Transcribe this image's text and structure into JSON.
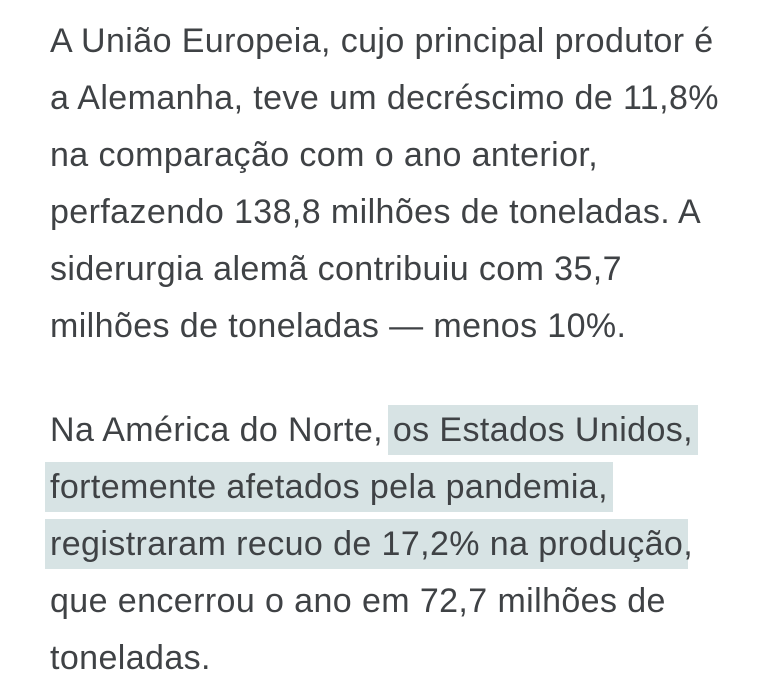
{
  "page": {
    "background": "#ffffff"
  },
  "colors": {
    "text": "#3f4245",
    "highlight": "#d7e3e4"
  },
  "article": {
    "highlighted_passage": "os Estados Unidos, fortemente afetados pela pandemia, registraram recuo de 17,2% na produção",
    "paragraphs": [
      {
        "name": "paragraph-uniao-europeia",
        "lines": [
          [
            {
              "text": "A União Europeia, cujo principal produtor é"
            }
          ],
          [
            {
              "text": "a Alemanha, teve um decréscimo de 11,8%"
            }
          ],
          [
            {
              "text": "na comparação com o ano anterior,"
            }
          ],
          [
            {
              "text": "perfazendo 138,8 milhões de toneladas. A"
            }
          ],
          [
            {
              "text": "siderurgia alemã contribuiu com 35,7"
            }
          ],
          [
            {
              "text": "milhões de toneladas — menos 10%."
            }
          ]
        ]
      },
      {
        "name": "paragraph-america-do-norte",
        "lines": [
          [
            {
              "text": "Na América do Norte, "
            },
            {
              "text": "os Estados Unidos,",
              "highlight": true
            }
          ],
          [
            {
              "text": "fortemente afetados pela pandemia,",
              "highlight": true
            }
          ],
          [
            {
              "text": "registraram recuo de 17,2% na produção",
              "highlight": true
            },
            {
              "text": ","
            }
          ],
          [
            {
              "text": "que encerrou o ano em 72,7 milhões de"
            }
          ],
          [
            {
              "text": "toneladas."
            }
          ]
        ]
      }
    ]
  }
}
